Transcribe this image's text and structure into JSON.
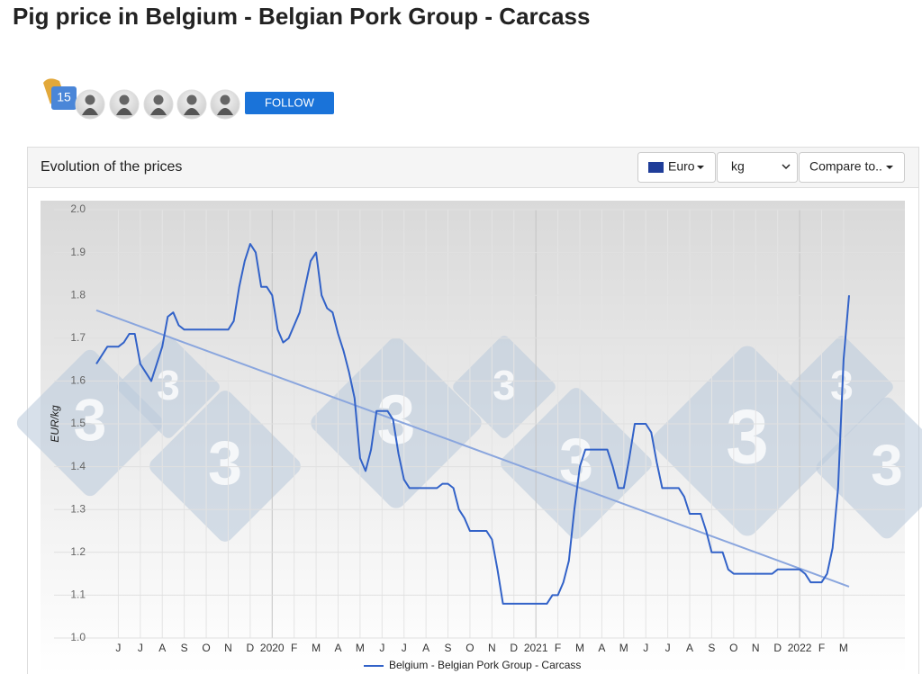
{
  "header": {
    "title": "Pig price in Belgium - Belgian Pork Group - Carcass",
    "followers": "15",
    "follow_button": "FOLLOW"
  },
  "panel": {
    "title": "Evolution of the prices",
    "currency": "Euro",
    "unit": "kg",
    "compare": "Compare to.."
  },
  "watermark": "3",
  "chart_data": {
    "type": "line",
    "ylabel": "EUR/kg",
    "categories": [
      null,
      null,
      null,
      null,
      "J",
      null,
      null,
      null,
      "J",
      null,
      null,
      null,
      "A",
      null,
      null,
      null,
      "S",
      null,
      null,
      null,
      "O",
      null,
      null,
      null,
      "N",
      null,
      null,
      null,
      "D",
      null,
      null,
      null,
      "2020",
      null,
      null,
      null,
      "F",
      null,
      null,
      null,
      "M",
      null,
      null,
      null,
      "A",
      null,
      null,
      null,
      "M",
      null,
      null,
      null,
      "J",
      null,
      null,
      null,
      "J",
      null,
      null,
      null,
      "A",
      null,
      null,
      null,
      "S",
      null,
      null,
      null,
      "O",
      null,
      null,
      null,
      "N",
      null,
      null,
      null,
      "D",
      null,
      null,
      null,
      "2021",
      null,
      null,
      null,
      "F",
      null,
      null,
      null,
      "M",
      null,
      null,
      null,
      "A",
      null,
      null,
      null,
      "M",
      null,
      null,
      null,
      "J",
      null,
      null,
      null,
      "J",
      null,
      null,
      null,
      "A",
      null,
      null,
      null,
      "S",
      null,
      null,
      null,
      "O",
      null,
      null,
      null,
      "N",
      null,
      null,
      null,
      "D",
      null,
      null,
      null,
      "2022",
      null,
      null,
      null,
      "F",
      null,
      null,
      null,
      "M",
      null
    ],
    "series": [
      {
        "name": "Belgium - Belgian Pork Group - Carcass",
        "color": "#3262c8",
        "values": [
          1.64,
          1.66,
          1.68,
          1.68,
          1.68,
          1.69,
          1.71,
          1.71,
          1.64,
          1.62,
          1.6,
          1.64,
          1.68,
          1.75,
          1.76,
          1.73,
          1.72,
          1.72,
          1.72,
          1.72,
          1.72,
          1.72,
          1.72,
          1.72,
          1.72,
          1.74,
          1.82,
          1.88,
          1.92,
          1.9,
          1.82,
          1.82,
          1.8,
          1.72,
          1.69,
          1.7,
          1.73,
          1.76,
          1.82,
          1.88,
          1.9,
          1.8,
          1.77,
          1.76,
          1.71,
          1.67,
          1.62,
          1.56,
          1.42,
          1.39,
          1.44,
          1.53,
          1.53,
          1.53,
          1.51,
          1.43,
          1.37,
          1.35,
          1.35,
          1.35,
          1.35,
          1.35,
          1.35,
          1.36,
          1.36,
          1.35,
          1.3,
          1.28,
          1.25,
          1.25,
          1.25,
          1.25,
          1.23,
          1.16,
          1.08,
          1.08,
          1.08,
          1.08,
          1.08,
          1.08,
          1.08,
          1.08,
          1.08,
          1.1,
          1.1,
          1.13,
          1.18,
          1.3,
          1.4,
          1.44,
          1.44,
          1.44,
          1.44,
          1.44,
          1.4,
          1.35,
          1.35,
          1.42,
          1.5,
          1.5,
          1.5,
          1.48,
          1.41,
          1.35,
          1.35,
          1.35,
          1.35,
          1.33,
          1.29,
          1.29,
          1.29,
          1.25,
          1.2,
          1.2,
          1.2,
          1.16,
          1.15,
          1.15,
          1.15,
          1.15,
          1.15,
          1.15,
          1.15,
          1.15,
          1.16,
          1.16,
          1.16,
          1.16,
          1.16,
          1.15,
          1.13,
          1.13,
          1.13,
          1.15,
          1.21,
          1.35,
          1.65,
          1.8
        ]
      }
    ],
    "trend": {
      "color": "#8aa6de",
      "values": [
        1.765,
        1.12
      ]
    },
    "ylim": [
      1,
      2
    ],
    "yticks": [
      {
        "value": 1,
        "label": "1.0"
      },
      1.1,
      1.2,
      1.3,
      1.4,
      1.5,
      1.6,
      1.7,
      1.8,
      1.9,
      {
        "value": 2,
        "label": "2.0"
      }
    ],
    "grid": true,
    "legend": "bottom"
  }
}
